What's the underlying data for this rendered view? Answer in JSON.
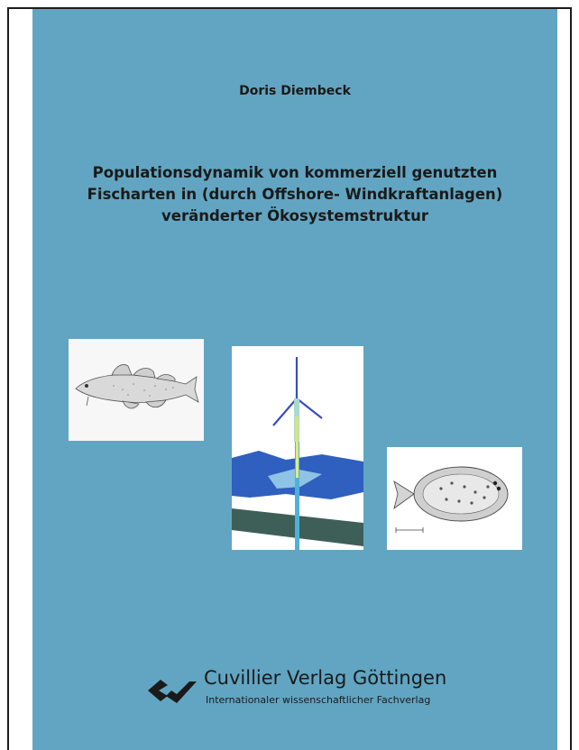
{
  "cover": {
    "author": "Doris Diembeck",
    "title_lines": [
      "Populationsdynamik von kommerziell genutzten",
      "Fischarten in (durch Offshore- Windkraftanlagen)",
      "veränderter Ökosystemstruktur"
    ]
  },
  "publisher": {
    "name": "Cuvillier Verlag Göttingen",
    "tagline": "Internationaler wissenschaftlicher Fachverlag"
  },
  "colors": {
    "cover_background": "#62a5c2",
    "text": "#1a1a1a"
  },
  "illustrations": [
    "cod-fish-drawing",
    "wind-turbine-model",
    "plaice-fish-drawing"
  ]
}
